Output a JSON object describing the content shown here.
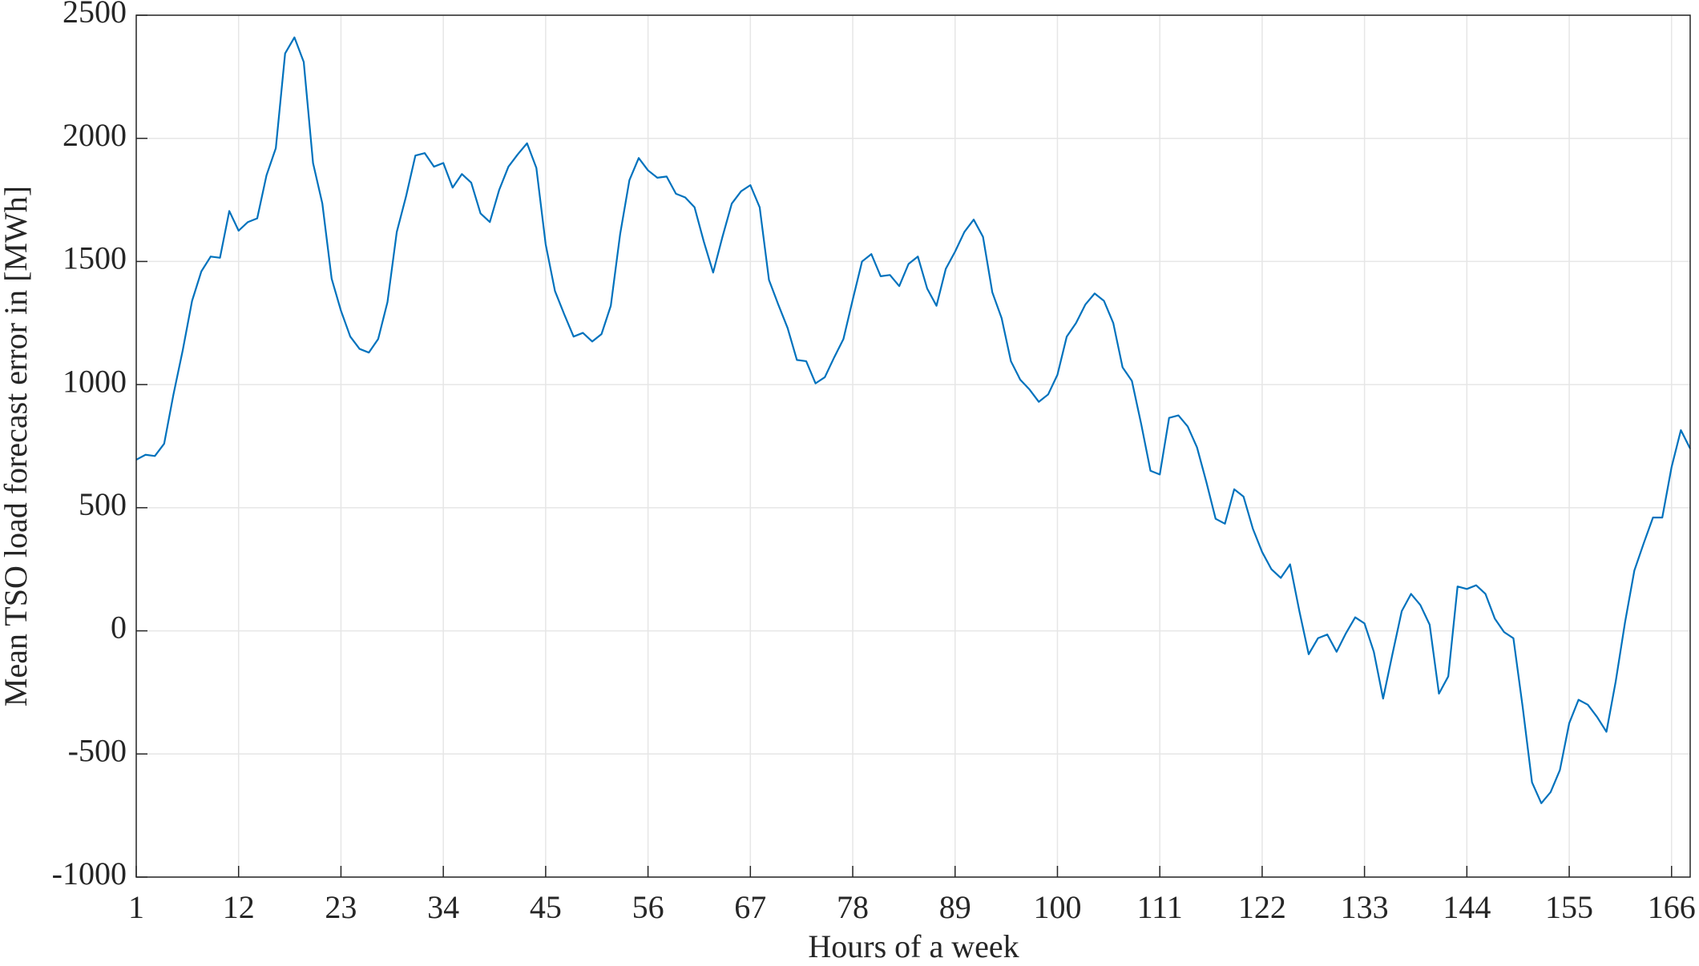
{
  "chart_data": {
    "type": "line",
    "x_label": "Hours of a week",
    "y_label": "Mean TSO load forecast error in [MWh]",
    "x": [
      1,
      2,
      3,
      4,
      5,
      6,
      7,
      8,
      9,
      10,
      11,
      12,
      13,
      14,
      15,
      16,
      17,
      18,
      19,
      20,
      21,
      22,
      23,
      24,
      25,
      26,
      27,
      28,
      29,
      30,
      31,
      32,
      33,
      34,
      35,
      36,
      37,
      38,
      39,
      40,
      41,
      42,
      43,
      44,
      45,
      46,
      47,
      48,
      49,
      50,
      51,
      52,
      53,
      54,
      55,
      56,
      57,
      58,
      59,
      60,
      61,
      62,
      63,
      64,
      65,
      66,
      67,
      68,
      69,
      70,
      71,
      72,
      73,
      74,
      75,
      76,
      77,
      78,
      79,
      80,
      81,
      82,
      83,
      84,
      85,
      86,
      87,
      88,
      89,
      90,
      91,
      92,
      93,
      94,
      95,
      96,
      97,
      98,
      99,
      100,
      101,
      102,
      103,
      104,
      105,
      106,
      107,
      108,
      109,
      110,
      111,
      112,
      113,
      114,
      115,
      116,
      117,
      118,
      119,
      120,
      121,
      122,
      123,
      124,
      125,
      126,
      127,
      128,
      129,
      130,
      131,
      132,
      133,
      134,
      135,
      136,
      137,
      138,
      139,
      140,
      141,
      142,
      143,
      144,
      145,
      146,
      147,
      148,
      149,
      150,
      151,
      152,
      153,
      154,
      155,
      156,
      157,
      158,
      159,
      160,
      161,
      162,
      163,
      164,
      165,
      166,
      167,
      168
    ],
    "series": [
      {
        "color": "#0072bd",
        "values": [
          695,
          715,
          710,
          760,
          960,
          1140,
          1340,
          1460,
          1520,
          1515,
          1705,
          1625,
          1660,
          1675,
          1850,
          1960,
          2345,
          2410,
          2310,
          1900,
          1735,
          1430,
          1300,
          1195,
          1145,
          1130,
          1185,
          1335,
          1620,
          1765,
          1930,
          1940,
          1885,
          1900,
          1800,
          1855,
          1820,
          1695,
          1660,
          1790,
          1885,
          1935,
          1980,
          1880,
          1570,
          1380,
          1285,
          1195,
          1210,
          1175,
          1205,
          1320,
          1610,
          1830,
          1920,
          1870,
          1840,
          1845,
          1775,
          1760,
          1720,
          1580,
          1455,
          1600,
          1735,
          1785,
          1810,
          1720,
          1425,
          1325,
          1230,
          1100,
          1095,
          1005,
          1030,
          1110,
          1185,
          1345,
          1500,
          1530,
          1440,
          1445,
          1400,
          1490,
          1520,
          1390,
          1320,
          1470,
          1540,
          1620,
          1670,
          1600,
          1375,
          1270,
          1095,
          1020,
          980,
          930,
          960,
          1040,
          1195,
          1250,
          1325,
          1370,
          1340,
          1250,
          1070,
          1015,
          840,
          650,
          635,
          865,
          875,
          830,
          745,
          605,
          455,
          435,
          575,
          545,
          415,
          320,
          250,
          215,
          270,
          80,
          -95,
          -30,
          -15,
          -85,
          -10,
          55,
          30,
          -85,
          -275,
          -95,
          80,
          150,
          105,
          25,
          -255,
          -185,
          180,
          170,
          185,
          150,
          50,
          -5,
          -30,
          -310,
          -615,
          -700,
          -655,
          -565,
          -375,
          -280,
          -300,
          -350,
          -410,
          -205,
          35,
          245,
          355,
          460,
          460,
          665,
          815,
          740
        ]
      }
    ],
    "xlim": [
      1,
      168
    ],
    "xticks": [
      1,
      12,
      23,
      34,
      45,
      56,
      67,
      78,
      89,
      100,
      111,
      122,
      133,
      144,
      155,
      166
    ],
    "ylim": [
      -1000,
      2500
    ],
    "yticks": [
      -1000,
      -500,
      0,
      500,
      1000,
      1500,
      2000,
      2500
    ],
    "grid": true
  }
}
